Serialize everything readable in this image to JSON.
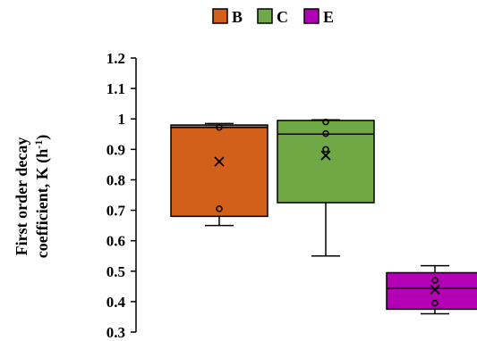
{
  "chart_data": {
    "type": "box",
    "ylabel_line1": "First order decay",
    "ylabel_line2_main": "coefficient, K (h",
    "ylabel_line2_sup": "-1",
    "ylabel_line2_end": ")",
    "ylim": [
      0.3,
      1.2
    ],
    "yticks": [
      "0.3",
      "0.4",
      "0.5",
      "0.6",
      "0.7",
      "0.8",
      "0.9",
      "1",
      "1.1",
      "1.2"
    ],
    "legend_position": "top-center",
    "series": [
      {
        "name": "B",
        "color": "#d2601a",
        "whisker_low": 0.65,
        "q1": 0.68,
        "median": 0.972,
        "q3": 0.98,
        "whisker_high": 0.985,
        "mean": 0.86,
        "points": [
          0.705,
          0.972
        ]
      },
      {
        "name": "C",
        "color": "#70a845",
        "whisker_low": 0.55,
        "q1": 0.725,
        "median": 0.95,
        "q3": 0.995,
        "whisker_high": 0.997,
        "mean": 0.88,
        "points": [
          0.99,
          0.952,
          0.9
        ]
      },
      {
        "name": "E",
        "color": "#b400b4",
        "whisker_low": 0.36,
        "q1": 0.375,
        "median": 0.443,
        "q3": 0.495,
        "whisker_high": 0.518,
        "mean": 0.44,
        "points": [
          0.47,
          0.395
        ]
      }
    ]
  }
}
